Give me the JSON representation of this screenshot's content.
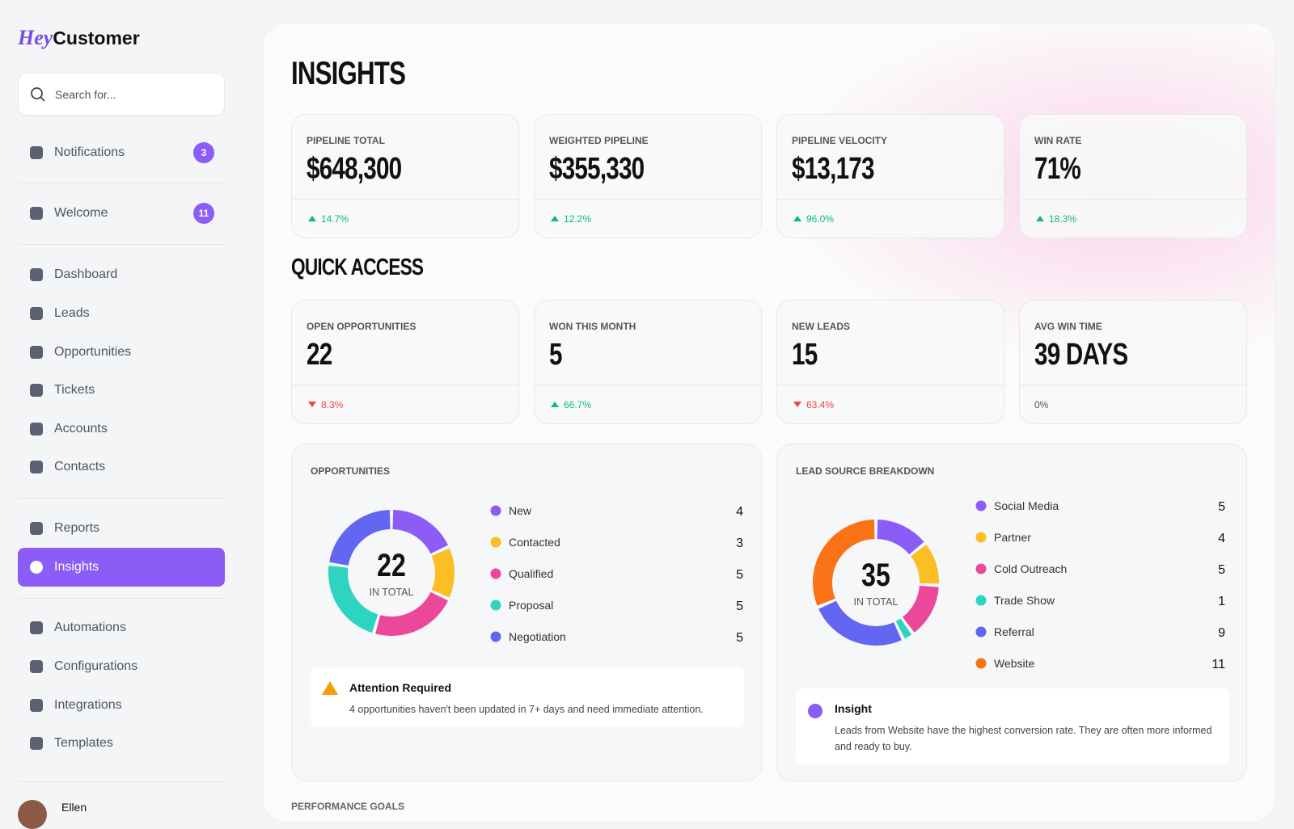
{
  "sidebar": {
    "logo": {
      "brand": "Hey",
      "name": "Customer"
    },
    "search_placeholder": "Search for...",
    "nav": [
      {
        "label": "Notifications",
        "badge": 3
      },
      {
        "label": "Welcome",
        "badge": 11
      },
      {
        "label": "Dashboard"
      },
      {
        "label": "Leads"
      },
      {
        "label": "Opportunities"
      },
      {
        "label": "Tickets"
      },
      {
        "label": "Accounts"
      },
      {
        "label": "Contacts"
      },
      {
        "label": "Reports"
      },
      {
        "label": "Insights",
        "active": true
      },
      {
        "label": "Automations"
      },
      {
        "label": "Configurations"
      },
      {
        "label": "Integrations"
      },
      {
        "label": "Templates"
      }
    ],
    "user": "Ellen"
  },
  "main": {
    "title": "INSIGHTS",
    "kpis": [
      {
        "label": "PIPELINE TOTAL",
        "value": "$648,300",
        "change": "14.7%",
        "direction": "up"
      },
      {
        "label": "WEIGHTED PIPELINE",
        "value": "$355,330",
        "change": "12.2%",
        "direction": "up"
      },
      {
        "label": "PIPELINE VELOCITY",
        "value": "$13,173",
        "change": "96.0%",
        "direction": "up"
      },
      {
        "label": "WIN RATE",
        "value": "71%",
        "change": "18.3%",
        "direction": "up"
      }
    ],
    "quick_access_title": "QUICK ACCESS",
    "quick_access": [
      {
        "label": "OPEN OPPORTUNITIES",
        "value": "22",
        "change": "8.3%",
        "direction": "down"
      },
      {
        "label": "WON THIS MONTH",
        "value": "5",
        "change": "66.7%",
        "direction": "up"
      },
      {
        "label": "NEW LEADS",
        "value": "15",
        "change": "63.4%",
        "direction": "down"
      },
      {
        "label": "AVG WIN TIME",
        "value": "39 DAYS",
        "change": "0%",
        "direction": "none"
      }
    ],
    "opportunities": {
      "title": "OPPORTUNITIES",
      "total": 22,
      "total_label": "IN TOTAL",
      "items": [
        {
          "name": "New",
          "value": 4,
          "color": "#8b5cf6"
        },
        {
          "name": "Contacted",
          "value": 3,
          "color": "#fbbf24"
        },
        {
          "name": "Qualified",
          "value": 5,
          "color": "#ec4899"
        },
        {
          "name": "Proposal",
          "value": 5,
          "color": "#2dd4bf"
        },
        {
          "name": "Negotiation",
          "value": 5,
          "color": "#6366f1"
        }
      ],
      "alert": {
        "title": "Attention Required",
        "text": "4 opportunities haven't been updated in 7+ days and need immediate attention."
      }
    },
    "lead_sources": {
      "title": "LEAD SOURCE BREAKDOWN",
      "total": 35,
      "total_label": "IN TOTAL",
      "items": [
        {
          "name": "Social Media",
          "value": 5,
          "color": "#8b5cf6"
        },
        {
          "name": "Partner",
          "value": 4,
          "color": "#fbbf24"
        },
        {
          "name": "Cold Outreach",
          "value": 5,
          "color": "#ec4899"
        },
        {
          "name": "Trade Show",
          "value": 1,
          "color": "#2dd4bf"
        },
        {
          "name": "Referral",
          "value": 9,
          "color": "#6366f1"
        },
        {
          "name": "Website",
          "value": 11,
          "color": "#f97316"
        }
      ],
      "alert": {
        "title": "Insight",
        "text": "Leads from Website have the highest conversion rate. They are often more informed and ready to buy."
      }
    },
    "performance_title": "PERFORMANCE GOALS"
  }
}
